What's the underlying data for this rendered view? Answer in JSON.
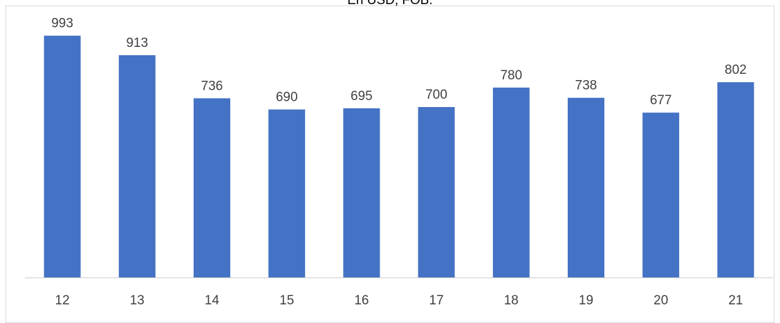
{
  "chart_data": {
    "type": "bar",
    "title": "En USD, FOB.",
    "categories": [
      "12",
      "13",
      "14",
      "15",
      "16",
      "17",
      "18",
      "19",
      "20",
      "21"
    ],
    "series": [
      {
        "values": [
          993,
          913,
          736,
          690,
          695,
          700,
          780,
          738,
          677,
          802
        ]
      }
    ],
    "ylim": [
      0,
      1100
    ],
    "grid": false,
    "legend": "none",
    "colors": {
      "bar": "#4472C4",
      "axis": "#d9d9d9",
      "text": "#404040"
    }
  }
}
